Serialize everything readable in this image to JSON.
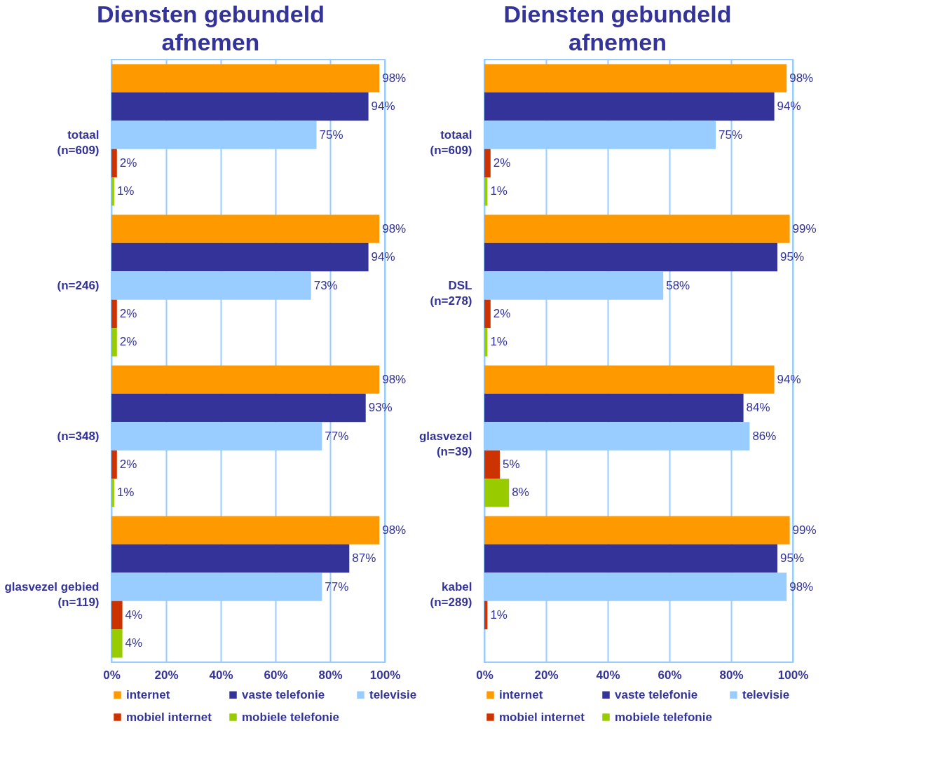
{
  "chart_data": [
    {
      "type": "bar",
      "orientation": "horizontal",
      "title": "Diensten gebundeld afnemen",
      "categories": [
        "totaal (n=609)",
        "(n=246)",
        "(n=348)",
        "glasvezel gebied (n=119)"
      ],
      "series": [
        {
          "name": "internet",
          "color": "#ff9900",
          "values": [
            98,
            98,
            98,
            98
          ],
          "value_labels": [
            "98%",
            "98%",
            "98%",
            "98%"
          ]
        },
        {
          "name": "vaste telefonie",
          "color": "#333399",
          "values": [
            94,
            94,
            93,
            87
          ],
          "value_labels": [
            "94%",
            "94%",
            "93%",
            "87%"
          ]
        },
        {
          "name": "televisie",
          "color": "#99ccff",
          "values": [
            75,
            73,
            77,
            77
          ],
          "value_labels": [
            "75%",
            "73%",
            "77%",
            "77%"
          ]
        },
        {
          "name": "mobiel internet",
          "color": "#cc3300",
          "values": [
            2,
            2,
            2,
            4
          ],
          "value_labels": [
            "2%",
            "2%",
            "2%",
            "4%"
          ]
        },
        {
          "name": "mobiele telefonie",
          "color": "#99cc00",
          "values": [
            1,
            2,
            1,
            4
          ],
          "value_labels": [
            "1%",
            "2%",
            "1%",
            "4%"
          ]
        }
      ],
      "xlim": [
        0,
        100
      ],
      "xticks": [
        {
          "value": 0,
          "label": "0%"
        },
        {
          "value": 20,
          "label": "20%"
        },
        {
          "value": 40,
          "label": "40%"
        },
        {
          "value": 60,
          "label": "60%"
        },
        {
          "value": 80,
          "label": "80%"
        },
        {
          "value": 100,
          "label": "100%"
        }
      ],
      "grid": "x",
      "legend": "bottom"
    },
    {
      "type": "bar",
      "orientation": "horizontal",
      "title": "Diensten gebundeld afnemen",
      "categories": [
        "totaal (n=609)",
        "DSL (n=278)",
        "glasvezel (n=39)",
        "kabel (n=289)"
      ],
      "series": [
        {
          "name": "internet",
          "color": "#ff9900",
          "values": [
            98,
            99,
            94,
            99
          ],
          "value_labels": [
            "98%",
            "99%",
            "94%",
            "99%"
          ]
        },
        {
          "name": "vaste telefonie",
          "color": "#333399",
          "values": [
            94,
            95,
            84,
            95
          ],
          "value_labels": [
            "94%",
            "95%",
            "84%",
            "95%"
          ]
        },
        {
          "name": "televisie",
          "color": "#99ccff",
          "values": [
            75,
            58,
            86,
            98
          ],
          "value_labels": [
            "75%",
            "58%",
            "86%",
            "98%"
          ]
        },
        {
          "name": "mobiel internet",
          "color": "#cc3300",
          "values": [
            2,
            2,
            5,
            1
          ],
          "value_labels": [
            "2%",
            "2%",
            "5%",
            "1%"
          ]
        },
        {
          "name": "mobiele telefonie",
          "color": "#99cc00",
          "values": [
            1,
            1,
            8,
            null
          ],
          "value_labels": [
            "1%",
            "1%",
            "8%",
            null
          ]
        }
      ],
      "xlim": [
        0,
        100
      ],
      "xticks": [
        {
          "value": 0,
          "label": "0%"
        },
        {
          "value": 20,
          "label": "20%"
        },
        {
          "value": 40,
          "label": "40%"
        },
        {
          "value": 60,
          "label": "60%"
        },
        {
          "value": 80,
          "label": "80%"
        },
        {
          "value": 100,
          "label": "100%"
        }
      ],
      "grid": "x",
      "legend": "bottom"
    }
  ]
}
